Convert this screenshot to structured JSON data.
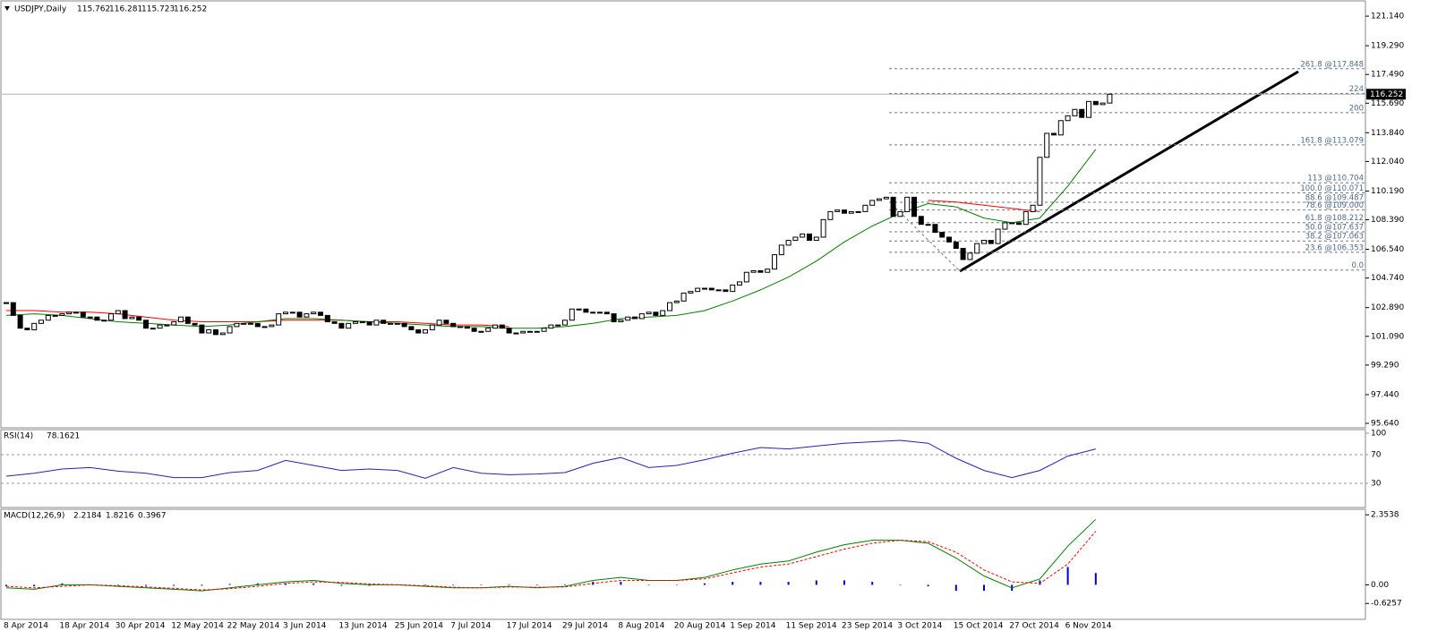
{
  "chart_data": {
    "type": "candlestick",
    "title": "USDJPY,Daily",
    "header_values": [
      115.762,
      116.281,
      115.723,
      116.252
    ],
    "current_price": 116.252,
    "ylim": [
      95.36,
      122.04
    ],
    "yticks": [
      {
        "value": 121.14,
        "label": "121.140"
      },
      {
        "value": 119.29,
        "label": "119.290"
      },
      {
        "value": 117.49,
        "label": "117.490"
      },
      {
        "value": 115.69,
        "label": "115.690"
      },
      {
        "value": 113.84,
        "label": "113.840"
      },
      {
        "value": 112.04,
        "label": "112.040"
      },
      {
        "value": 110.19,
        "label": "110.190"
      },
      {
        "value": 108.39,
        "label": "108.390"
      },
      {
        "value": 106.54,
        "label": "106.540"
      },
      {
        "value": 104.74,
        "label": "104.740"
      },
      {
        "value": 102.89,
        "label": "102.890"
      },
      {
        "value": 101.09,
        "label": "101.090"
      },
      {
        "value": 99.29,
        "label": "99.290"
      },
      {
        "value": 97.44,
        "label": "97.440"
      },
      {
        "value": 95.64,
        "label": "95.640"
      }
    ],
    "x_labels": [
      "8 Apr 2014",
      "18 Apr 2014",
      "30 Apr 2014",
      "12 May 2014",
      "22 May 2014",
      "3 Jun 2014",
      "13 Jun 2014",
      "25 Jun 2014",
      "7 Jul 2014",
      "17 Jul 2014",
      "29 Jul 2014",
      "8 Aug 2014",
      "20 Aug 2014",
      "1 Sep 2014",
      "11 Sep 2014",
      "23 Sep 2014",
      "3 Oct 2014",
      "15 Oct 2014",
      "27 Oct 2014",
      "6 Nov 2014"
    ],
    "close": [
      103.2,
      102.4,
      101.6,
      101.5,
      101.9,
      102.1,
      102.4,
      102.4,
      102.5,
      102.6,
      102.6,
      102.3,
      102.3,
      102.1,
      102.1,
      102.5,
      102.7,
      102.2,
      102.3,
      102.1,
      101.6,
      101.6,
      101.8,
      101.8,
      102.0,
      102.3,
      101.9,
      101.8,
      101.3,
      101.5,
      101.2,
      101.3,
      101.7,
      101.9,
      101.9,
      101.9,
      101.7,
      101.7,
      101.8,
      102.5,
      102.6,
      102.6,
      102.3,
      102.5,
      102.6,
      102.4,
      102.0,
      101.9,
      101.6,
      101.9,
      102.0,
      102.0,
      101.8,
      102.1,
      101.9,
      101.9,
      101.9,
      101.7,
      101.5,
      101.3,
      101.5,
      101.8,
      102.1,
      101.9,
      101.7,
      101.7,
      101.6,
      101.4,
      101.4,
      101.6,
      101.8,
      101.6,
      101.3,
      101.3,
      101.4,
      101.4,
      101.4,
      101.6,
      101.8,
      101.8,
      102.1,
      102.8,
      102.8,
      102.6,
      102.6,
      102.6,
      102.5,
      102.0,
      102.1,
      102.3,
      102.2,
      102.5,
      102.6,
      102.4,
      102.7,
      103.2,
      103.3,
      103.8,
      103.9,
      104.1,
      104.1,
      104.0,
      104.0,
      103.9,
      104.3,
      104.5,
      105.1,
      105.2,
      105.1,
      105.3,
      106.2,
      106.8,
      107.1,
      107.3,
      107.5,
      107.1,
      107.3,
      108.4,
      108.9,
      109.0,
      108.8,
      108.9,
      108.9,
      109.3,
      109.6,
      109.7,
      109.8,
      108.6,
      108.9,
      109.8,
      108.6,
      108.1,
      108.1,
      107.6,
      107.3,
      107.0,
      106.6,
      105.9,
      106.3,
      106.9,
      107.1,
      106.9,
      107.8,
      108.2,
      108.2,
      108.1,
      108.9,
      109.3,
      112.3,
      113.8,
      113.7,
      114.6,
      114.9,
      115.3,
      114.8,
      115.8,
      115.6,
      115.7,
      116.252
    ],
    "ma_green": {
      "color": "#008000",
      "values": [
        102.4,
        102.5,
        102.4,
        102.2,
        102.0,
        101.9,
        101.8,
        101.7,
        101.8,
        102.0,
        102.2,
        102.2,
        102.1,
        102.0,
        101.9,
        101.8,
        101.7,
        101.7,
        101.6,
        101.6,
        101.7,
        101.9,
        102.2,
        102.3,
        102.4,
        102.7,
        103.3,
        104.0,
        104.8,
        105.8,
        107.0,
        108.0,
        108.8,
        109.4,
        109.2,
        108.5,
        108.2,
        108.5,
        110.5,
        112.8
      ]
    },
    "ma_red": {
      "color": "#ff0000",
      "values": [
        102.7,
        102.7,
        102.6,
        102.6,
        102.5,
        102.3,
        102.1,
        102.0,
        102.0,
        102.0,
        102.1,
        102.1,
        102.1,
        102.0,
        102.0,
        101.9,
        101.8,
        101.8,
        101.7,
        null,
        null,
        null,
        null,
        null,
        null,
        null,
        null,
        null,
        null,
        null,
        null,
        null,
        null,
        109.6,
        109.5,
        109.3,
        109.1,
        108.9,
        null,
        null
      ]
    },
    "fib_levels": [
      {
        "value": 117.848,
        "label": "261.8 @117.848"
      },
      {
        "value": 116.3,
        "label": "224"
      },
      {
        "value": 115.1,
        "label": "200"
      },
      {
        "value": 113.079,
        "label": "161.8 @113.079"
      },
      {
        "value": 110.704,
        "label": "113 @110.704"
      },
      {
        "value": 110.071,
        "label": "100.0 @110.071"
      },
      {
        "value": 109.487,
        "label": "88.6 @109.487"
      },
      {
        "value": 109.0,
        "label": "78.6 @109.000"
      },
      {
        "value": 108.212,
        "label": "61.8 @108.212"
      },
      {
        "value": 107.637,
        "label": "50.0 @107.637"
      },
      {
        "value": 107.063,
        "label": "38.2 @107.063"
      },
      {
        "value": 106.353,
        "label": "23.6 @106.353"
      },
      {
        "value": 105.24,
        "label": "0.0"
      }
    ],
    "rsi": {
      "title": "RSI(14)",
      "last": 78.1621,
      "color": "#2323b4",
      "ylim": [
        0,
        100
      ],
      "yticks": [
        30,
        70,
        100
      ],
      "values": [
        40,
        44,
        50,
        52,
        47,
        44,
        38,
        38,
        45,
        48,
        62,
        55,
        48,
        50,
        48,
        37,
        52,
        44,
        42,
        43,
        45,
        58,
        66,
        52,
        55,
        63,
        72,
        80,
        78,
        82,
        86,
        88,
        90,
        86,
        65,
        48,
        38,
        48,
        68,
        78
      ]
    },
    "macd": {
      "title": "MACD(12,26,9)",
      "header_values": [
        2.2184,
        1.8216,
        0.3967
      ],
      "ylim": [
        -1.16,
        2.51
      ],
      "yticks": [
        2.3538,
        {
          "value": 0,
          "label": "0.00"
        },
        -0.6257
      ],
      "main": {
        "color": "#008000",
        "values": [
          -0.1,
          -0.15,
          0,
          0,
          -0.05,
          -0.1,
          -0.15,
          -0.2,
          -0.1,
          0,
          0.1,
          0.15,
          0.05,
          0,
          0,
          -0.05,
          -0.1,
          -0.1,
          -0.05,
          -0.1,
          -0.05,
          0.15,
          0.25,
          0.15,
          0.15,
          0.25,
          0.5,
          0.7,
          0.8,
          1.1,
          1.35,
          1.5,
          1.5,
          1.4,
          0.9,
          0.3,
          -0.1,
          0.2,
          1.3,
          2.2
        ]
      },
      "signal": {
        "color": "#ff0000",
        "values": [
          -0.05,
          -0.1,
          -0.05,
          0,
          -0.03,
          -0.07,
          -0.12,
          -0.17,
          -0.13,
          -0.05,
          0.05,
          0.1,
          0.08,
          0.03,
          0,
          -0.03,
          -0.08,
          -0.1,
          -0.07,
          -0.08,
          -0.07,
          0.05,
          0.15,
          0.15,
          0.15,
          0.2,
          0.4,
          0.6,
          0.7,
          0.95,
          1.2,
          1.4,
          1.5,
          1.45,
          1.1,
          0.5,
          0.1,
          0.05,
          0.7,
          1.8
        ]
      },
      "histogram": {
        "color": "#0000c8",
        "values": [
          -0.05,
          -0.05,
          0.05,
          0,
          -0.02,
          -0.03,
          -0.03,
          -0.03,
          0.03,
          0.05,
          0.05,
          0.05,
          -0.03,
          -0.03,
          0,
          -0.02,
          -0.02,
          0,
          0.02,
          -0.02,
          0.02,
          0.1,
          0.1,
          0,
          0,
          0.05,
          0.1,
          0.1,
          0.1,
          0.15,
          0.15,
          0.1,
          0,
          -0.05,
          -0.2,
          -0.2,
          -0.2,
          0.15,
          0.6,
          0.4
        ]
      }
    }
  }
}
